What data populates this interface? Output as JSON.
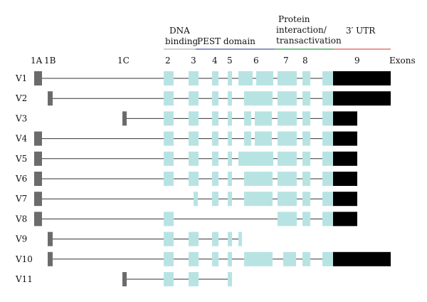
{
  "domains": {
    "dna_binding": [
      "DNA",
      "binding"
    ],
    "pest": "PEST domain",
    "protein": [
      "Protein",
      "interaction/",
      "transactivation"
    ],
    "utr": "3′ UTR"
  },
  "colors": {
    "exon_fill": "#b8e3e3",
    "first_exon": "#6b6b6b",
    "utr_fill": "#000000",
    "intron_line": "#333333",
    "pest_line": "#4b55a8",
    "protein_line": "#2e9a4a",
    "utr_line": "#d95a5a"
  },
  "exon_headers": [
    "1A",
    "1B",
    "1C",
    "2",
    "3",
    "4",
    "5",
    "6",
    "7",
    "8",
    "9",
    "Exons"
  ],
  "variants": [
    {
      "name": "V1",
      "first": "1A",
      "blocks": [
        "e2",
        "e3",
        "e4",
        "e5",
        "e6a",
        "e6b",
        "e7",
        "e8",
        "e9a",
        "utr_long"
      ]
    },
    {
      "name": "V2",
      "first": "1B",
      "blocks": [
        "e2",
        "e3",
        "e4",
        "e5",
        "e6_long",
        "e7",
        "e8",
        "e9a",
        "utr_long"
      ]
    },
    {
      "name": "V3",
      "first": "1C",
      "blocks": [
        "e2",
        "e3",
        "e4",
        "e5",
        "e6s1",
        "e6s2",
        "e7",
        "e8",
        "e9a",
        "utr_short"
      ]
    },
    {
      "name": "V4",
      "first": "1A",
      "blocks": [
        "e2",
        "e3",
        "e4",
        "e5",
        "e6s1",
        "e6s2",
        "e7",
        "e8",
        "e9a",
        "utr_short"
      ]
    },
    {
      "name": "V5",
      "first": "1A",
      "blocks": [
        "e2",
        "e3",
        "e4",
        "e5",
        "e6_long2",
        "e7",
        "e8",
        "e9a",
        "utr_short"
      ]
    },
    {
      "name": "V6",
      "first": "1A",
      "blocks": [
        "e2",
        "e3",
        "e4",
        "e5",
        "e6_long",
        "e7",
        "e8",
        "e9a",
        "utr_short"
      ]
    },
    {
      "name": "V7",
      "first": "1A",
      "blocks": [
        "e3_small",
        "e4",
        "e5",
        "e6_long",
        "e7",
        "e8",
        "e9a",
        "utr_short"
      ]
    },
    {
      "name": "V8",
      "first": "1A",
      "blocks": [
        "e2",
        "e7",
        "e8",
        "e9a",
        "utr_short"
      ]
    },
    {
      "name": "V9",
      "first": "1B",
      "blocks": [
        "e2",
        "e3",
        "e4",
        "e5",
        "e5b"
      ]
    },
    {
      "name": "V10",
      "first": "1B",
      "blocks": [
        "e2",
        "e3",
        "e4",
        "e5",
        "e6_long",
        "e7b",
        "e8",
        "e9a",
        "utr_long"
      ]
    },
    {
      "name": "V11",
      "first": "1C",
      "blocks": [
        "e2",
        "e3",
        "e5"
      ]
    }
  ]
}
